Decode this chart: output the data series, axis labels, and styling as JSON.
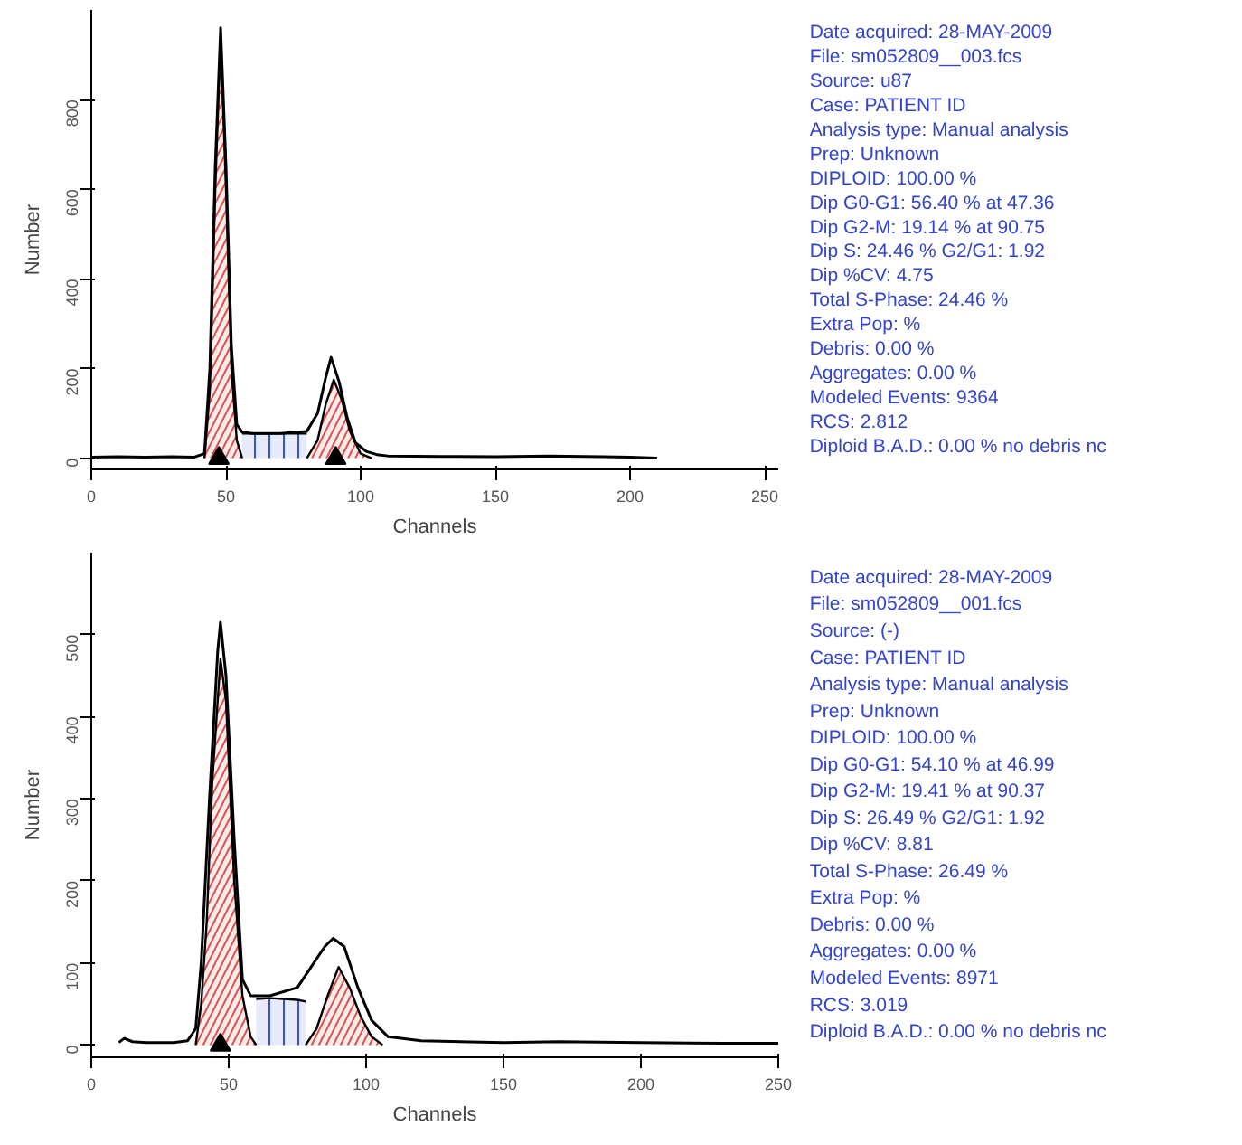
{
  "chart_data": [
    {
      "type": "line",
      "xlabel": "Channels",
      "ylabel": "Number",
      "xlim": [
        0,
        255
      ],
      "ylim": [
        -25,
        1000
      ],
      "xticks": [
        0,
        50,
        100,
        150,
        200,
        250
      ],
      "yticks": [
        0,
        200,
        400,
        600,
        800
      ],
      "grid": false,
      "series": [
        {
          "type": "area",
          "color": "#3b4fd6",
          "x": [
            56,
            65,
            75,
            80
          ],
          "values": [
            55,
            55,
            55,
            55
          ]
        },
        {
          "type": "area",
          "color": "#d9534f",
          "x": [
            42,
            44,
            46,
            48,
            50,
            52,
            54,
            56
          ],
          "values": [
            0,
            150,
            600,
            940,
            600,
            200,
            40,
            0
          ]
        },
        {
          "type": "area",
          "color": "#d9534f",
          "x": [
            80,
            84,
            87,
            90,
            93,
            96,
            100,
            104
          ],
          "values": [
            0,
            40,
            120,
            175,
            130,
            60,
            10,
            0
          ]
        },
        {
          "type": "line",
          "color": "#000000",
          "x": [
            0,
            10,
            20,
            30,
            38,
            42,
            44,
            46,
            48,
            50,
            52,
            54,
            56,
            60,
            70,
            80,
            84,
            87,
            89,
            92,
            95,
            98,
            102,
            106,
            110,
            130,
            150,
            170,
            190,
            200,
            210
          ],
          "values": [
            2,
            3,
            2,
            3,
            2,
            10,
            200,
            650,
            960,
            650,
            250,
            75,
            58,
            55,
            55,
            60,
            100,
            180,
            225,
            170,
            90,
            35,
            15,
            8,
            5,
            4,
            3,
            5,
            3,
            2,
            0
          ]
        },
        {
          "type": "scatter",
          "marker": "triangle",
          "color": "#000000",
          "x": [
            47.36,
            90.75
          ],
          "values": [
            0,
            0
          ]
        }
      ]
    },
    {
      "type": "other",
      "color": "#3344cc",
      "annotations": [
        "Date acquired: 28-MAY-2009",
        "File: sm052809__003.fcs",
        "Source: u87",
        "Case: PATIENT ID",
        "Analysis type: Manual analysis",
        "Prep: Unknown",
        "DIPLOID: 100.00 %",
        "Dip G0-G1: 56.40 % at 47.36",
        "Dip G2-M: 19.14 % at 90.75",
        "Dip S: 24.46 %  G2/G1: 1.92",
        "Dip %CV: 4.75",
        "Total S-Phase: 24.46 %",
        "Extra Pop:  %",
        "Debris: 0.00 %",
        "Aggregates: 0.00 %",
        "Modeled Events: 9364",
        "RCS: 2.812",
        "Diploid B.A.D.: 0.00 %   no debris nc"
      ]
    },
    {
      "type": "line",
      "xlabel": "Channels",
      "ylabel": "Number",
      "xlim": [
        0,
        250
      ],
      "ylim": [
        -15,
        600
      ],
      "xticks": [
        0,
        50,
        100,
        150,
        200,
        250
      ],
      "yticks": [
        0,
        100,
        200,
        300,
        400,
        500
      ],
      "grid": false,
      "series": [
        {
          "type": "area",
          "color": "#3b4fd6",
          "x": [
            60,
            65,
            75,
            78
          ],
          "values": [
            56,
            57,
            55,
            53
          ]
        },
        {
          "type": "area",
          "color": "#d9534f",
          "x": [
            38,
            40,
            42,
            44,
            47,
            49,
            52,
            55,
            58,
            60
          ],
          "values": [
            0,
            50,
            150,
            320,
            470,
            420,
            200,
            60,
            10,
            0
          ]
        },
        {
          "type": "area",
          "color": "#d9534f",
          "x": [
            78,
            82,
            86,
            90,
            94,
            98,
            102,
            106
          ],
          "values": [
            0,
            20,
            60,
            95,
            70,
            35,
            10,
            0
          ]
        },
        {
          "type": "line",
          "color": "#000000",
          "x": [
            10,
            12,
            15,
            20,
            30,
            35,
            38,
            40,
            43,
            46,
            47,
            49,
            52,
            55,
            58,
            65,
            75,
            80,
            85,
            88,
            92,
            97,
            102,
            108,
            120,
            150,
            170,
            200,
            230,
            250
          ],
          "values": [
            3,
            8,
            4,
            3,
            3,
            5,
            20,
            100,
            300,
            480,
            515,
            450,
            250,
            80,
            60,
            60,
            70,
            95,
            120,
            130,
            120,
            70,
            30,
            10,
            5,
            3,
            4,
            3,
            2,
            2
          ]
        },
        {
          "type": "scatter",
          "marker": "triangle",
          "color": "#000000",
          "x": [
            46.99
          ],
          "values": [
            0
          ]
        }
      ]
    },
    {
      "type": "other",
      "color": "#3344cc",
      "annotations": [
        "Date acquired: 28-MAY-2009",
        "File: sm052809__001.fcs",
        "Source: (-)",
        "Case: PATIENT ID",
        "Analysis type: Manual analysis",
        "Prep: Unknown",
        "DIPLOID: 100.00 %",
        "Dip G0-G1: 54.10 % at 46.99",
        "Dip G2-M: 19.41 % at 90.37",
        "Dip S: 26.49 %  G2/G1: 1.92",
        "Dip %CV: 8.81",
        "Total S-Phase: 26.49 %",
        "Extra Pop:  %",
        "Debris: 0.00 %",
        "Aggregates: 0.00 %",
        "Modeled Events: 8971",
        "RCS: 3.019",
        "Diploid B.A.D.: 0.00 %   no debris nc"
      ]
    }
  ]
}
